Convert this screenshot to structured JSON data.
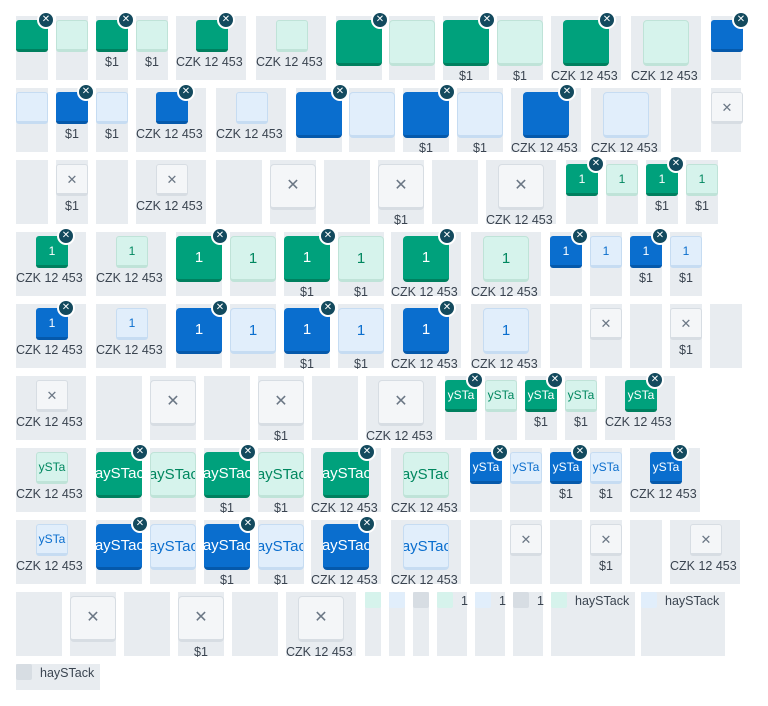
{
  "colors": {
    "teal": "#00a17c",
    "teal_light": "#d6f3ec",
    "blue": "#0a6ece",
    "blue_light": "#e1eefb",
    "grey": "#d7dde3",
    "close_badge": "#134a5e"
  },
  "icons": {
    "close": "✕"
  },
  "captions": {
    "c1": "$1",
    "c2": "CZK 12 453"
  },
  "key_labels": {
    "num": "1",
    "short": "ySTa",
    "long": "haySTack"
  },
  "legend": [
    {
      "color": "teal",
      "label": ""
    },
    {
      "color": "blue",
      "label": ""
    },
    {
      "color": "grey",
      "label": ""
    },
    {
      "color": "teal",
      "label": "1"
    },
    {
      "color": "blue",
      "label": "1"
    },
    {
      "color": "grey",
      "label": "1"
    },
    {
      "color": "teal",
      "label": "haySTack"
    },
    {
      "color": "blue",
      "label": "haySTack"
    },
    {
      "color": "grey",
      "label": "haySTack"
    }
  ]
}
